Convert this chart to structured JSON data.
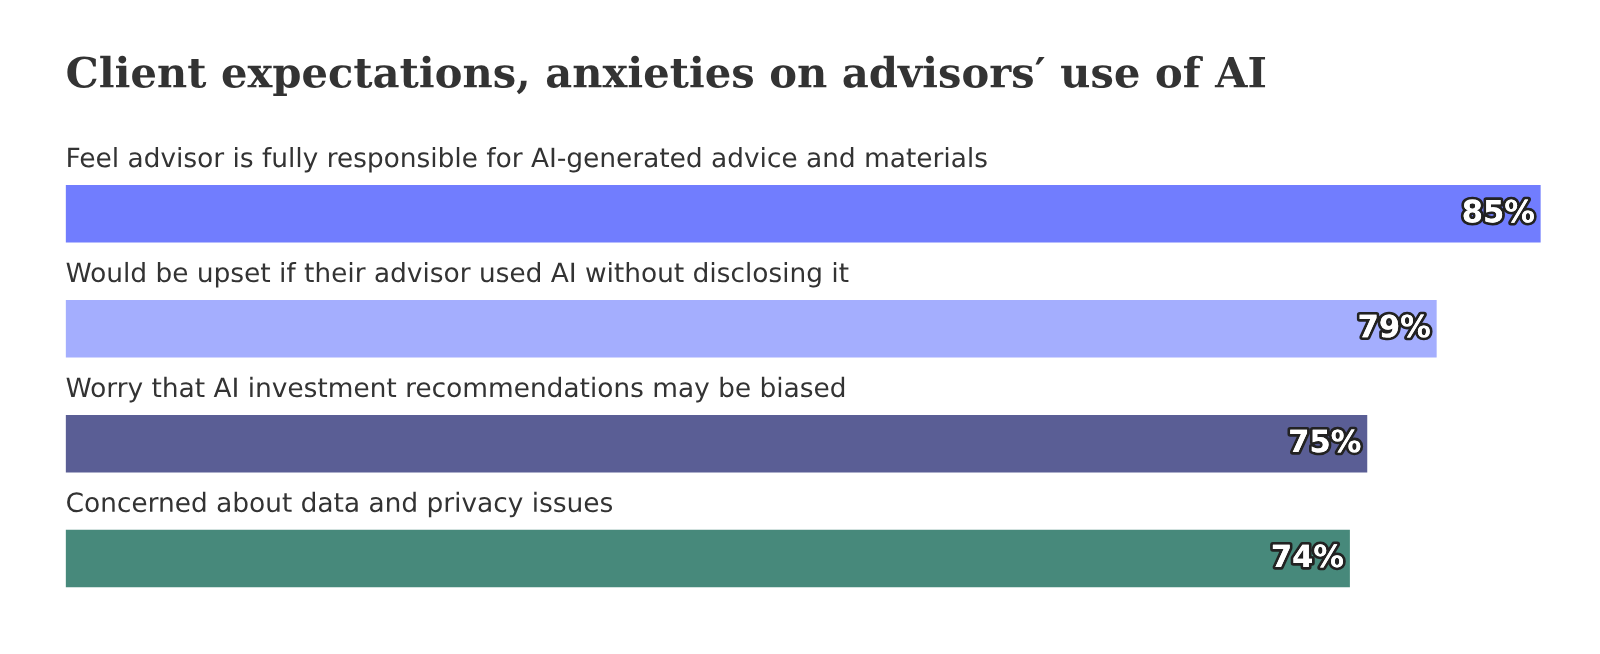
{
  "chart_data": {
    "type": "bar",
    "orientation": "horizontal",
    "title": "Client expectations, anxieties on advisors′ use of AI",
    "categories": [
      "Feel advisor is fully responsible for AI-generated advice and materials",
      "Would be upset if their advisor used AI without disclosing it",
      "Worry that AI investment recommendations may be biased",
      "Concerned about data and privacy issues"
    ],
    "values": [
      85,
      79,
      75,
      74
    ],
    "value_labels": [
      "85%",
      "79%",
      "75%",
      "74%"
    ],
    "colors": [
      "#717dfe",
      "#a4aefe",
      "#5a5e95",
      "#47897b"
    ]
  }
}
